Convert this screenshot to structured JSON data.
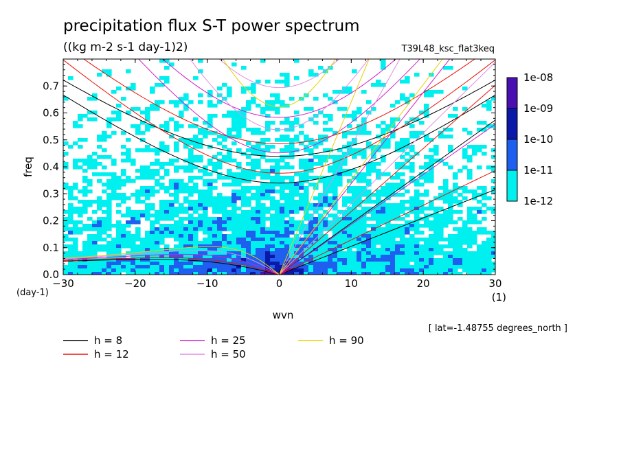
{
  "chart_data": {
    "type": "heatmap",
    "title": "precipitation flux S-T power spectrum",
    "subtitle": "((kg m-2 s-1 day-1)2)",
    "run_label": "T39L48_ksc_flat3keq",
    "xlabel": "wvn",
    "xunit": "(1)",
    "ylabel": "freq",
    "yunit": "(day-1)",
    "xlim": [
      -30,
      30
    ],
    "ylim": [
      0,
      0.8
    ],
    "x_ticks": [
      "-30",
      "-20",
      "-10",
      "0",
      "10",
      "20",
      "30"
    ],
    "y_ticks": [
      "0.0",
      "0.1",
      "0.2",
      "0.3",
      "0.4",
      "0.5",
      "0.6",
      "0.7"
    ],
    "colorbar": {
      "levels": [
        "1e-08",
        "1e-09",
        "1e-10",
        "1e-11",
        "1e-12"
      ],
      "colors": [
        "#4a0fb0",
        "#0a19a8",
        "#1f5ff0",
        "#00f0f0"
      ]
    },
    "dispersion_curves": [
      {
        "name": "h =  8",
        "h": 8,
        "color": "#000000"
      },
      {
        "name": "h = 12",
        "h": 12,
        "color": "#e8140a"
      },
      {
        "name": "h = 25",
        "h": 25,
        "color": "#d21ec8"
      },
      {
        "name": "h = 50",
        "h": 50,
        "color": "#e08ce6"
      },
      {
        "name": "h = 90",
        "h": 90,
        "color": "#e6d200"
      }
    ],
    "annotation": "[ lat=-1.48755 degrees_north ]"
  }
}
